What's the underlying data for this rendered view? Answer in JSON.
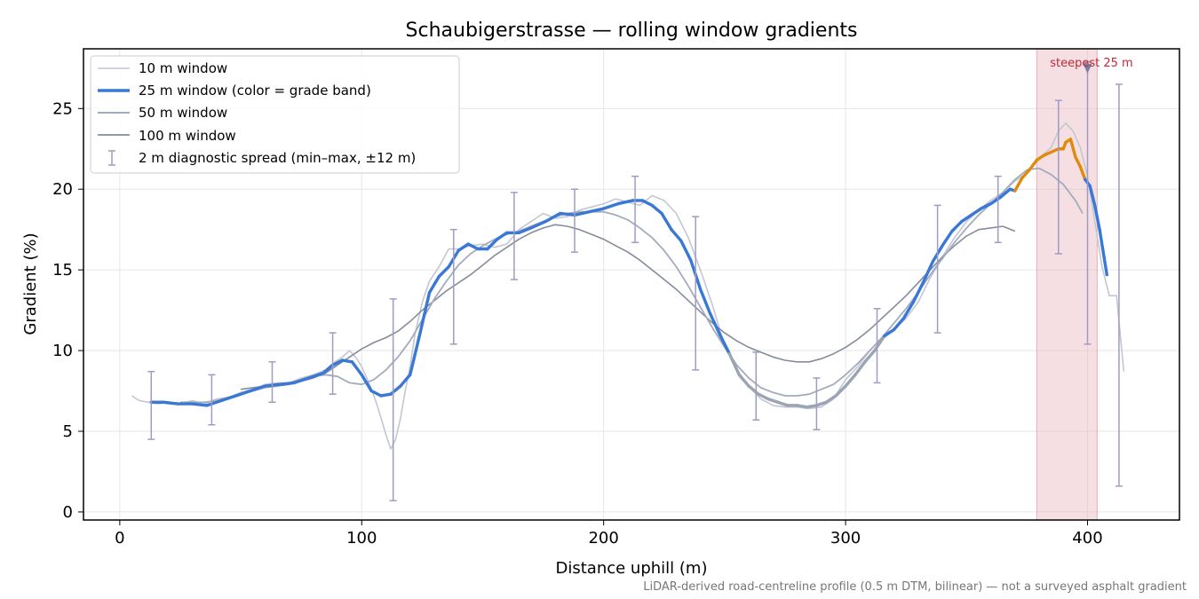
{
  "chart_data": {
    "type": "line",
    "title": "Schaubigerstrasse — rolling window gradients",
    "xlabel": "Distance uphill (m)",
    "ylabel": "Gradient (%)",
    "xlim": [
      -15,
      438
    ],
    "ylim": [
      -0.5,
      28.7
    ],
    "xticks": [
      0,
      100,
      200,
      300,
      400
    ],
    "yticks": [
      0,
      5,
      10,
      15,
      20,
      25
    ],
    "grid": true,
    "legend_position": "upper-left",
    "footnote": "LiDAR-derived road-centreline profile (0.5 m DTM, bilinear) — not a surveyed asphalt gradient",
    "colors": {
      "w10": "#c3c7d4",
      "w25_blue": "#3a78d6",
      "w25_orange": "#e08a0b",
      "w25_grey": "#9ba4b4",
      "w50": "#a3abbd",
      "w100": "#868c9b",
      "errorbar": "#9f9cc3",
      "highlight": "#e8b8c0",
      "annotation": "#c0283a"
    },
    "series": [
      {
        "name": "10 m window",
        "x": [
          5,
          8,
          12,
          16,
          20,
          25,
          30,
          35,
          40,
          45,
          50,
          55,
          60,
          65,
          70,
          75,
          80,
          85,
          88,
          92,
          95,
          98,
          100,
          103,
          106,
          108,
          110,
          112,
          114,
          116,
          118,
          120,
          122,
          125,
          128,
          132,
          136,
          140,
          145,
          150,
          155,
          160,
          165,
          170,
          175,
          180,
          185,
          190,
          195,
          200,
          205,
          210,
          215,
          220,
          225,
          230,
          235,
          240,
          245,
          250,
          255,
          260,
          265,
          270,
          275,
          280,
          285,
          290,
          295,
          300,
          305,
          310,
          315,
          320,
          325,
          330,
          335,
          340,
          345,
          350,
          355,
          360,
          365,
          370,
          375,
          380,
          385,
          388,
          391,
          394,
          397,
          400,
          403,
          406,
          409,
          412,
          415
        ],
        "y": [
          7.2,
          6.9,
          6.8,
          6.7,
          6.8,
          6.7,
          6.9,
          6.7,
          7.0,
          7.1,
          7.4,
          7.6,
          7.9,
          8.0,
          8.0,
          8.3,
          8.5,
          8.8,
          9.2,
          9.6,
          10.0,
          9.5,
          9.0,
          8.0,
          6.8,
          5.8,
          4.8,
          3.9,
          4.5,
          5.8,
          7.5,
          9.0,
          11.0,
          13.0,
          14.3,
          15.2,
          16.3,
          16.3,
          16.5,
          16.6,
          16.4,
          16.6,
          17.5,
          18.0,
          18.5,
          18.2,
          18.3,
          18.7,
          18.9,
          19.1,
          19.4,
          19.2,
          19.0,
          19.6,
          19.3,
          18.5,
          17.0,
          15.0,
          12.8,
          10.3,
          8.8,
          7.8,
          7.0,
          6.6,
          6.5,
          6.5,
          6.4,
          6.5,
          7.0,
          8.2,
          9.0,
          10.0,
          10.8,
          11.3,
          12.0,
          13.0,
          14.5,
          15.8,
          17.0,
          18.0,
          18.7,
          19.3,
          19.8,
          20.5,
          21.0,
          21.9,
          22.6,
          23.6,
          24.1,
          23.6,
          22.6,
          20.8,
          18.0,
          15.2,
          13.4,
          13.4,
          8.7
        ]
      },
      {
        "name": "25 m window (color = grade band)",
        "x": [
          13,
          18,
          24,
          30,
          36,
          42,
          48,
          54,
          60,
          66,
          72,
          78,
          84,
          88,
          92,
          96,
          100,
          104,
          108,
          112,
          116,
          120,
          124,
          128,
          132,
          136,
          140,
          144,
          148,
          152,
          156,
          160,
          165,
          170,
          176,
          182,
          188,
          194,
          200,
          206,
          212,
          216,
          220,
          224,
          228,
          232,
          236,
          240,
          244,
          248,
          252,
          256,
          260,
          264,
          268,
          272,
          276,
          280,
          284,
          288,
          292,
          296,
          300,
          304,
          308,
          312,
          316,
          320,
          324,
          328,
          332,
          336,
          340,
          344,
          348,
          352,
          356,
          360,
          364,
          368,
          370,
          373,
          376,
          379,
          382,
          385,
          388,
          390,
          391,
          393,
          395,
          397,
          399,
          401,
          403,
          405,
          408
        ],
        "y": [
          6.8,
          6.8,
          6.7,
          6.7,
          6.6,
          6.9,
          7.2,
          7.5,
          7.8,
          7.9,
          8.0,
          8.3,
          8.6,
          9.1,
          9.4,
          9.3,
          8.5,
          7.5,
          7.2,
          7.3,
          7.8,
          8.5,
          11.0,
          13.6,
          14.6,
          15.2,
          16.2,
          16.6,
          16.3,
          16.3,
          16.9,
          17.3,
          17.3,
          17.6,
          18.0,
          18.5,
          18.4,
          18.6,
          18.8,
          19.1,
          19.3,
          19.3,
          19.0,
          18.5,
          17.5,
          16.8,
          15.6,
          13.8,
          12.3,
          11.0,
          9.8,
          8.5,
          7.8,
          7.3,
          7.0,
          6.8,
          6.6,
          6.6,
          6.5,
          6.6,
          6.8,
          7.2,
          7.8,
          8.5,
          9.3,
          10.0,
          10.9,
          11.3,
          12.0,
          13.0,
          14.2,
          15.5,
          16.5,
          17.4,
          18.0,
          18.4,
          18.8,
          19.1,
          19.5,
          20.0,
          19.9,
          20.7,
          21.2,
          21.8,
          22.1,
          22.3,
          22.5,
          22.5,
          22.9,
          23.1,
          22.0,
          21.4,
          20.6,
          20.2,
          19.0,
          17.5,
          14.7
        ],
        "band_color": [
          "blue",
          "blue",
          "blue",
          "blue",
          "blue",
          "blue",
          "blue",
          "blue",
          "blue",
          "blue",
          "blue",
          "blue",
          "blue",
          "blue",
          "blue",
          "blue",
          "blue",
          "blue",
          "blue",
          "blue",
          "blue",
          "blue",
          "blue",
          "blue",
          "blue",
          "blue",
          "blue",
          "blue",
          "blue",
          "blue",
          "blue",
          "blue",
          "blue",
          "blue",
          "blue",
          "blue",
          "blue",
          "blue",
          "blue",
          "blue",
          "blue",
          "blue",
          "blue",
          "blue",
          "blue",
          "blue",
          "blue",
          "blue",
          "blue",
          "blue",
          "blue",
          "grey",
          "grey",
          "grey",
          "grey",
          "grey",
          "grey",
          "grey",
          "grey",
          "grey",
          "grey",
          "grey",
          "grey",
          "grey",
          "grey",
          "grey",
          "grey",
          "blue",
          "blue",
          "blue",
          "blue",
          "blue",
          "blue",
          "blue",
          "blue",
          "blue",
          "blue",
          "blue",
          "blue",
          "blue",
          "blue",
          "orange",
          "orange",
          "orange",
          "orange",
          "orange",
          "orange",
          "orange",
          "orange",
          "orange",
          "orange",
          "orange",
          "orange",
          "blue",
          "blue",
          "blue",
          "blue"
        ]
      },
      {
        "name": "50 m window",
        "x": [
          25,
          30,
          35,
          40,
          45,
          50,
          55,
          60,
          65,
          70,
          75,
          80,
          85,
          90,
          95,
          100,
          105,
          110,
          115,
          120,
          125,
          130,
          135,
          140,
          145,
          150,
          155,
          160,
          165,
          170,
          175,
          180,
          185,
          190,
          195,
          200,
          205,
          210,
          215,
          220,
          225,
          230,
          235,
          240,
          245,
          250,
          255,
          260,
          265,
          270,
          275,
          280,
          285,
          290,
          295,
          300,
          305,
          310,
          315,
          320,
          325,
          330,
          335,
          340,
          345,
          350,
          355,
          360,
          365,
          370,
          375,
          380,
          385,
          390,
          395,
          398
        ],
        "y": [
          6.8,
          6.8,
          6.8,
          6.9,
          7.1,
          7.3,
          7.5,
          7.7,
          7.8,
          8.0,
          8.2,
          8.4,
          8.5,
          8.4,
          8.0,
          7.9,
          8.2,
          8.8,
          9.6,
          10.6,
          11.9,
          13.2,
          14.3,
          15.3,
          16.0,
          16.5,
          16.9,
          17.2,
          17.4,
          17.7,
          18.0,
          18.3,
          18.5,
          18.6,
          18.6,
          18.6,
          18.4,
          18.1,
          17.6,
          17.0,
          16.2,
          15.2,
          14.0,
          12.7,
          11.4,
          10.2,
          9.1,
          8.3,
          7.7,
          7.4,
          7.2,
          7.2,
          7.3,
          7.6,
          7.9,
          8.5,
          9.2,
          10.0,
          10.8,
          11.7,
          12.6,
          13.6,
          14.7,
          15.7,
          16.7,
          17.6,
          18.4,
          19.1,
          19.8,
          20.6,
          21.2,
          21.3,
          20.9,
          20.3,
          19.3,
          18.5
        ]
      },
      {
        "name": "100 m window",
        "x": [
          50,
          55,
          60,
          65,
          70,
          75,
          80,
          85,
          90,
          95,
          100,
          105,
          110,
          115,
          120,
          125,
          130,
          135,
          140,
          145,
          150,
          155,
          160,
          165,
          170,
          175,
          180,
          185,
          190,
          195,
          200,
          205,
          210,
          215,
          220,
          225,
          230,
          235,
          240,
          245,
          250,
          255,
          260,
          265,
          270,
          275,
          280,
          285,
          290,
          295,
          300,
          305,
          310,
          315,
          320,
          325,
          330,
          335,
          340,
          345,
          350,
          355,
          360,
          365,
          370
        ],
        "y": [
          7.6,
          7.7,
          7.8,
          7.8,
          7.9,
          8.1,
          8.3,
          8.6,
          9.1,
          9.6,
          10.1,
          10.5,
          10.8,
          11.2,
          11.8,
          12.5,
          13.1,
          13.7,
          14.2,
          14.7,
          15.3,
          15.9,
          16.4,
          16.9,
          17.3,
          17.6,
          17.8,
          17.7,
          17.5,
          17.2,
          16.9,
          16.5,
          16.1,
          15.6,
          15.0,
          14.4,
          13.8,
          13.1,
          12.4,
          11.7,
          11.1,
          10.6,
          10.2,
          9.9,
          9.6,
          9.4,
          9.3,
          9.3,
          9.5,
          9.8,
          10.2,
          10.7,
          11.3,
          12.0,
          12.7,
          13.4,
          14.2,
          15.0,
          15.8,
          16.5,
          17.1,
          17.5,
          17.6,
          17.7,
          17.4
        ]
      }
    ],
    "errorbars": {
      "name": "2 m diagnostic spread (min–max, ±12 m)",
      "x": [
        13,
        38,
        63,
        88,
        113,
        138,
        163,
        188,
        213,
        238,
        263,
        288,
        313,
        338,
        363,
        388,
        400,
        413
      ],
      "low": [
        4.5,
        5.4,
        6.8,
        7.3,
        0.7,
        10.4,
        14.4,
        16.1,
        16.7,
        8.8,
        5.7,
        5.1,
        8.0,
        11.1,
        16.7,
        16.0,
        10.4,
        1.6
      ],
      "high": [
        8.7,
        8.5,
        9.3,
        11.1,
        13.2,
        17.5,
        19.8,
        20.0,
        20.8,
        18.3,
        9.9,
        8.3,
        12.6,
        19.0,
        20.8,
        25.5,
        27.9,
        26.5
      ]
    },
    "highlight": {
      "x0": 379,
      "x1": 404,
      "label": "steepest 25 m",
      "marker_x": 400,
      "marker_y": 27.5
    }
  }
}
